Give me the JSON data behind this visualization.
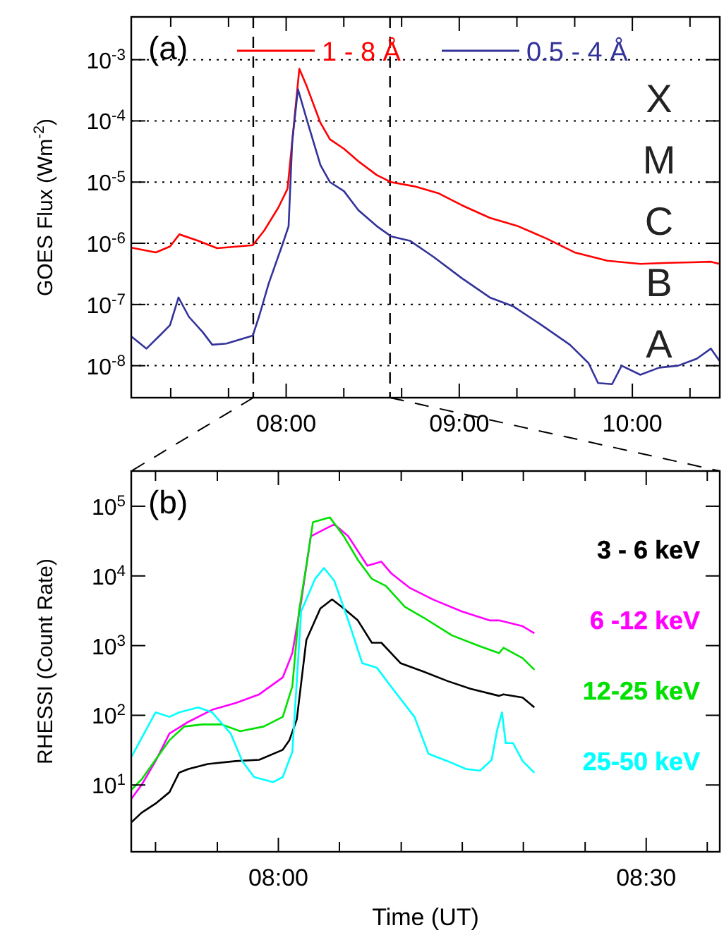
{
  "chart_data": [
    {
      "type": "line",
      "ylabel": "GOES Flux  (Wm$^{-2}$)",
      "log": "y",
      "grid": "y",
      "legend": "top",
      "xlim": [
        7.105,
        10.505
      ],
      "xticks": [
        {
          "value": 7.333,
          "label": null
        },
        {
          "value": 7.667,
          "label": null
        },
        {
          "value": 8,
          "label": "08:00"
        },
        {
          "value": 8.333,
          "label": null
        },
        {
          "value": 8.667,
          "label": null
        },
        {
          "value": 9,
          "label": "09:00"
        },
        {
          "value": 9.333,
          "label": null
        },
        {
          "value": 9.667,
          "label": null
        },
        {
          "value": 10,
          "label": "10:00"
        },
        {
          "value": 10.333,
          "label": null
        }
      ],
      "ylim": [
        3e-09,
        0.005
      ],
      "yticks": [
        {
          "value": 1e-08,
          "label": "10$^{-8}$"
        },
        {
          "value": 1e-07,
          "label": "10$^{-7}$"
        },
        {
          "value": 1e-06,
          "label": "10$^{-6}$"
        },
        {
          "value": 1e-05,
          "label": "10$^{-5}$"
        },
        {
          "value": 0.0001,
          "label": "10$^{-4}$"
        },
        {
          "value": 0.001,
          "label": "10$^{-3}$"
        }
      ],
      "ref_lines": [
        {
          "axis": "x",
          "value": 7.81,
          "color": "#000000",
          "line_style": "dashed"
        },
        {
          "axis": "x",
          "value": 8.6,
          "color": "#000000",
          "line_style": "dashed"
        }
      ],
      "annotations": [
        "(a)",
        "X",
        "M",
        "C",
        "B",
        "A"
      ],
      "series": [
        {
          "name": "1 - 8 Å",
          "color": "#ff0000",
          "x": [
            7.106,
            7.247,
            7.329,
            7.383,
            7.492,
            7.601,
            7.807,
            7.872,
            7.954,
            8.008,
            8.035,
            8.076,
            8.117,
            8.198,
            8.253,
            8.334,
            8.416,
            8.524,
            8.606,
            8.742,
            8.878,
            9.014,
            9.177,
            9.34,
            9.503,
            9.666,
            9.856,
            10.046,
            10.209,
            10.345,
            10.454,
            10.503
          ],
          "values": [
            8.5e-07,
            7.1e-07,
            8.9e-07,
            1.4e-06,
            1.1e-06,
            8.3e-07,
            9.3e-07,
            1.6e-06,
            3.8e-06,
            7.8e-06,
            4.6e-05,
            0.00071,
            0.00038,
            9.3e-05,
            5e-05,
            3.5e-05,
            2.2e-05,
            1.3e-05,
            1e-05,
            8.5e-06,
            6.6e-06,
            4.2e-06,
            2.6e-06,
            1.9e-06,
            1.2e-06,
            7.1e-07,
            5.2e-07,
            4.6e-07,
            4.8e-07,
            4.9e-07,
            5e-07,
            4.6e-07
          ]
        },
        {
          "name": "0.5 - 4 Å",
          "color": "#33339a",
          "x": [
            7.106,
            7.193,
            7.274,
            7.329,
            7.378,
            7.438,
            7.519,
            7.573,
            7.655,
            7.807,
            7.845,
            7.899,
            7.981,
            8.014,
            8.035,
            8.068,
            8.117,
            8.198,
            8.253,
            8.334,
            8.416,
            8.524,
            8.606,
            8.715,
            8.851,
            9.014,
            9.177,
            9.313,
            9.476,
            9.639,
            9.747,
            9.802,
            9.883,
            9.938,
            10.046,
            10.155,
            10.264,
            10.372,
            10.454,
            10.503
          ],
          "values": [
            3e-08,
            1.9e-08,
            3.2e-08,
            4.6e-08,
            1.3e-07,
            6.3e-08,
            3.5e-08,
            2.2e-08,
            2.3e-08,
            3.1e-08,
            6.6e-08,
            2.2e-07,
            1e-06,
            1.9e-06,
            4.6e-05,
            0.00033,
            0.00011,
            1.9e-05,
            1e-05,
            7.1e-06,
            3.5e-06,
            1.9e-06,
            1.3e-06,
            1.1e-06,
            6e-07,
            2.7e-07,
            1.3e-07,
            9.3e-08,
            4.6e-08,
            2.2e-08,
            1.1e-08,
            5.2e-09,
            5e-09,
            1e-08,
            7.1e-09,
            9.3e-09,
            1e-08,
            1.3e-08,
            1.9e-08,
            1.2e-08
          ]
        }
      ]
    },
    {
      "type": "line",
      "xlabel": "Time (UT)",
      "ylabel": "RHESSI (Count Rate)",
      "log": "y",
      "legend": "right",
      "xlim": [
        7.8,
        8.6
      ],
      "xticks": [
        {
          "value": 7.833,
          "label": null
        },
        {
          "value": 7.917,
          "label": null
        },
        {
          "value": 8,
          "label": "08:00"
        },
        {
          "value": 8.083,
          "label": null
        },
        {
          "value": 8.167,
          "label": null
        },
        {
          "value": 8.25,
          "label": null
        },
        {
          "value": 8.333,
          "label": null
        },
        {
          "value": 8.417,
          "label": null
        },
        {
          "value": 8.5,
          "label": "08:30"
        },
        {
          "value": 8.583,
          "label": null
        }
      ],
      "ylim": [
        1.1,
        320000
      ],
      "yticks": [
        {
          "value": 10,
          "label": "10$^{1}$"
        },
        {
          "value": 100,
          "label": "10$^{2}$"
        },
        {
          "value": 1000,
          "label": "10$^{3}$"
        },
        {
          "value": 10000,
          "label": "10$^{4}$"
        },
        {
          "value": 100000,
          "label": "10$^{5}$"
        }
      ],
      "annotations": [
        "(b)"
      ],
      "series": [
        {
          "name": "3 - 6 keV",
          "color": "#000000",
          "x": [
            7.8,
            7.814,
            7.833,
            7.852,
            7.865,
            7.878,
            7.904,
            7.942,
            7.974,
            8.006,
            8.015,
            8.025,
            8.038,
            8.057,
            8.073,
            8.089,
            8.108,
            8.127,
            8.14,
            8.166,
            8.198,
            8.23,
            8.261,
            8.3,
            8.306,
            8.332,
            8.348
          ],
          "values": [
            2.9,
            4.0,
            5.4,
            7.9,
            15,
            17,
            20,
            22,
            23,
            32,
            44,
            87,
            1200,
            3400,
            4600,
            3400,
            2300,
            1100,
            1100,
            560,
            420,
            310,
            240,
            190,
            200,
            180,
            130
          ]
        },
        {
          "name": "6 -12 keV",
          "color": "#ff00ff",
          "x": [
            7.8,
            7.814,
            7.833,
            7.852,
            7.878,
            7.91,
            7.942,
            7.974,
            8.006,
            8.019,
            8.031,
            8.044,
            8.063,
            8.076,
            8.095,
            8.121,
            8.14,
            8.153,
            8.178,
            8.21,
            8.249,
            8.287,
            8.3,
            8.332,
            8.348
          ],
          "values": [
            6.3,
            10,
            22,
            55,
            81,
            120,
            150,
            200,
            350,
            780,
            4300,
            37000,
            47000,
            55000,
            37000,
            14000,
            16000,
            11000,
            6800,
            4600,
            3100,
            2300,
            2300,
            1900,
            1500
          ]
        },
        {
          "name": "12-25 keV",
          "color": "#00e000",
          "x": [
            7.8,
            7.814,
            7.833,
            7.852,
            7.872,
            7.897,
            7.923,
            7.948,
            7.98,
            8.006,
            8.019,
            8.028,
            8.038,
            8.047,
            8.07,
            8.089,
            8.108,
            8.127,
            8.146,
            8.172,
            8.198,
            8.236,
            8.274,
            8.3,
            8.306,
            8.332,
            8.348
          ],
          "values": [
            8.5,
            12,
            23,
            44,
            69,
            74,
            74,
            59,
            69,
            95,
            260,
            3100,
            14000,
            59000,
            69000,
            37000,
            17000,
            9100,
            7200,
            3600,
            2500,
            1400,
            980,
            780,
            930,
            660,
            450
          ]
        },
        {
          "name": "25-50 keV",
          "color": "#00ffff",
          "x": [
            7.8,
            7.814,
            7.833,
            7.852,
            7.865,
            7.891,
            7.91,
            7.935,
            7.951,
            7.967,
            7.993,
            8.006,
            8.019,
            8.031,
            8.05,
            8.062,
            8.076,
            8.095,
            8.114,
            8.134,
            8.153,
            8.185,
            8.204,
            8.23,
            8.255,
            8.274,
            8.29,
            8.297,
            8.304,
            8.309,
            8.319,
            8.332,
            8.348
          ],
          "values": [
            25,
            47,
            110,
            95,
            110,
            130,
            110,
            55,
            22,
            13,
            11,
            13,
            30,
            3100,
            9100,
            13000,
            8500,
            2300,
            560,
            480,
            260,
            95,
            28,
            22,
            17,
            16,
            23,
            59,
            110,
            40,
            40,
            22,
            15
          ]
        }
      ]
    }
  ]
}
